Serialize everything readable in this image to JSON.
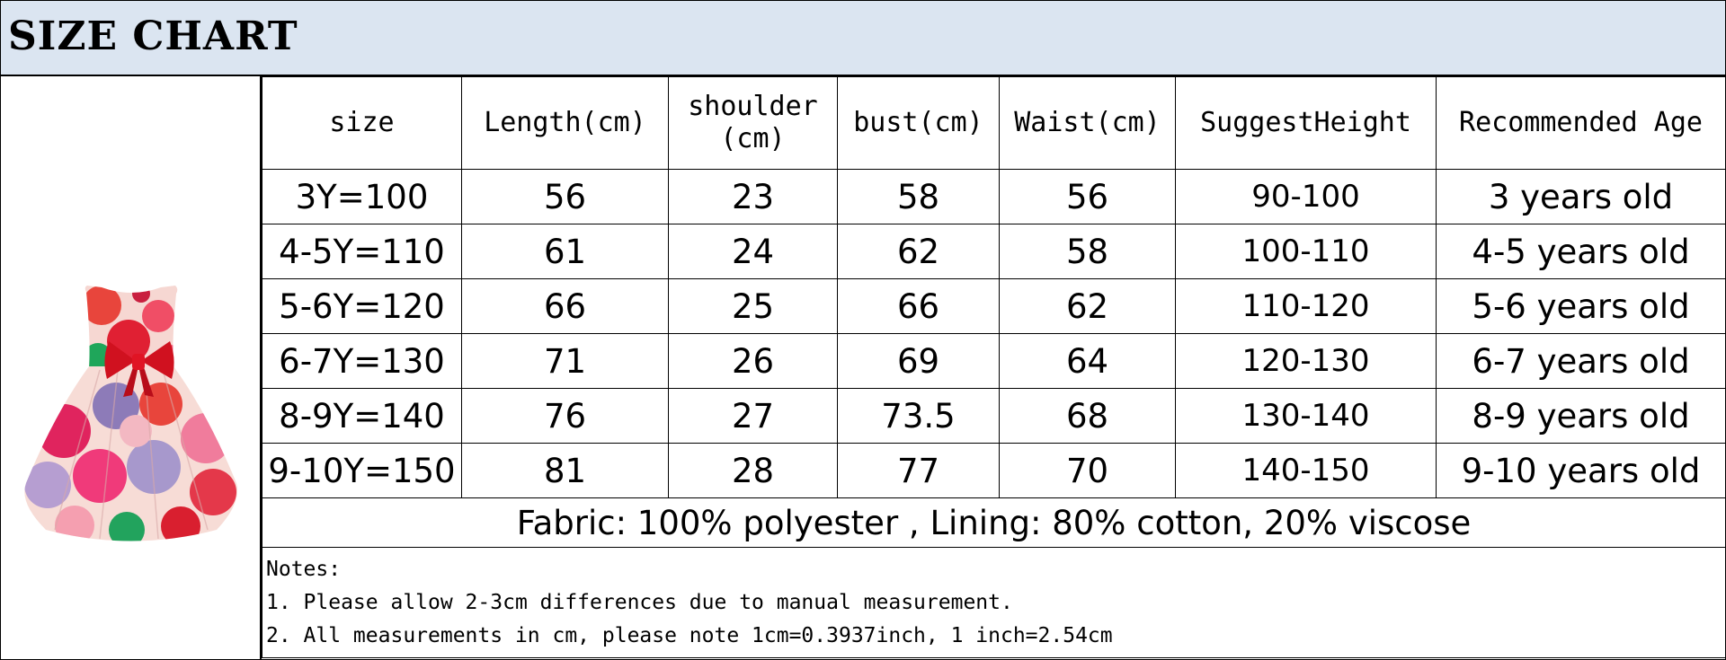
{
  "title": "SIZE CHART",
  "product_image": {
    "description_icon": "polka-dot-dress-image"
  },
  "table": {
    "headers": {
      "size": "size",
      "length": "Length(cm)",
      "shoulder": "shoulder (cm)",
      "bust": "bust(cm)",
      "waist": "Waist(cm)",
      "height": "SuggestHeight",
      "age": "Recommended Age"
    },
    "rows": [
      {
        "size": "3Y=100",
        "length": "56",
        "shoulder": "23",
        "bust": "58",
        "waist": "56",
        "height": "90-100",
        "age": "3 years old"
      },
      {
        "size": "4-5Y=110",
        "length": "61",
        "shoulder": "24",
        "bust": "62",
        "waist": "58",
        "height": "100-110",
        "age": "4-5 years old"
      },
      {
        "size": "5-6Y=120",
        "length": "66",
        "shoulder": "25",
        "bust": "66",
        "waist": "62",
        "height": "110-120",
        "age": "5-6 years old"
      },
      {
        "size": "6-7Y=130",
        "length": "71",
        "shoulder": "26",
        "bust": "69",
        "waist": "64",
        "height": "120-130",
        "age": "6-7 years old"
      },
      {
        "size": "8-9Y=140",
        "length": "76",
        "shoulder": "27",
        "bust": "73.5",
        "waist": "68",
        "height": "130-140",
        "age": "8-9 years old"
      },
      {
        "size": "9-10Y=150",
        "length": "81",
        "shoulder": "28",
        "bust": "77",
        "waist": "70",
        "height": "140-150",
        "age": "9-10 years old"
      }
    ],
    "fabric": "Fabric: 100% polyester , Lining: 80% cotton, 20% viscose",
    "notes": [
      "Notes:",
      "1. Please allow 2-3cm differences due to manual measurement.",
      "2. All measurements in cm, please note 1cm=0.3937inch, 1 inch=2.54cm"
    ]
  },
  "colors": {
    "title_bar_bg": "#dbe5f1",
    "border": "#000000"
  }
}
